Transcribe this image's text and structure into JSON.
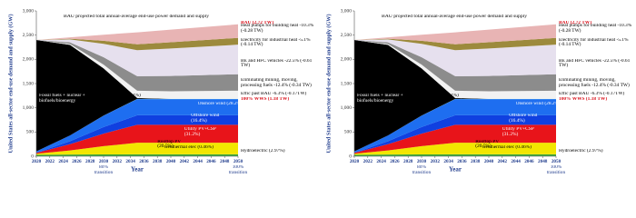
{
  "chart_data": [
    {
      "type": "stacked-area",
      "title": "BAU projected total annual-average end-use power demand and supply",
      "ylabel": "United States all-sector end-use demand and supply (GW)",
      "xlabel": "Year",
      "bau_label": "BAU (2.72 TW)",
      "wws_label": "100% WWS (1.18 TW)",
      "annotations": [
        "80% transition",
        "100% transition"
      ],
      "x": [
        2020,
        2025,
        2030,
        2035,
        2040,
        2050
      ],
      "xlim": [
        2020,
        2050
      ],
      "xticks": [
        2020,
        2022,
        2024,
        2026,
        2028,
        2030,
        2032,
        2034,
        2036,
        2038,
        2040,
        2042,
        2044,
        2046,
        2048,
        2050
      ],
      "ylim": [
        0,
        3000
      ],
      "yticks": [
        0,
        500,
        {
          "value": 1000,
          "label": "1,000"
        },
        {
          "value": 1500,
          "label": "1,500"
        },
        {
          "value": 2000,
          "label": "2,000"
        },
        {
          "value": 2500,
          "label": "2,500"
        },
        {
          "value": 3000,
          "label": "3,000"
        }
      ],
      "series": [
        {
          "name": "Geothermal elec (0.46%)",
          "color": "#1f5f1f",
          "values": [
            0.5,
            2,
            3.5,
            5,
            5,
            5
          ]
        },
        {
          "name": "Hydroelectric (2.97%)",
          "color": "#3aa83a",
          "values": [
            30,
            32,
            34,
            35,
            35,
            35
          ]
        },
        {
          "name": "Rooftop PV (20.5%)",
          "color": "#f2e600",
          "values": [
            20,
            85,
            170,
            240,
            240,
            240
          ]
        },
        {
          "name": "Utility PV+CSP (31.2%)",
          "color": "#e8141a",
          "values": [
            20,
            130,
            260,
            370,
            370,
            370
          ]
        },
        {
          "name": "Offshore wind (16.4%)",
          "color": "#1040e0",
          "values": [
            0,
            60,
            135,
            195,
            195,
            195
          ]
        },
        {
          "name": "Onshore wind (28.2%)",
          "color": "#1e6ef0",
          "values": [
            30,
            120,
            235,
            335,
            335,
            335
          ]
        },
        {
          "name": "Tidal+wave (0.22%)",
          "color": "#30c0e0",
          "values": [
            0,
            1,
            2,
            3,
            3,
            3
          ]
        },
        {
          "name": "Fossil fuels + nuclear + biofuels/bioenergy",
          "color": "#000000",
          "values": [
            2300,
            1870,
            975,
            20,
            0,
            0
          ]
        },
        {
          "name": "Effic past BAU -6.3% (-0.17TW)",
          "color": "#f2f2f2",
          "values": [
            0,
            17,
            77,
            150,
            158,
            170
          ]
        },
        {
          "name": "Eliminating mining, moving, processing fuels -12.4% (-0.34 TW)",
          "color": "#8c8c8c",
          "values": [
            0,
            34,
            153,
            299,
            316,
            340
          ]
        },
        {
          "name": "BE and HFC vehicles -22.5% (-0.61 TW)",
          "color": "#e6e0ee",
          "values": [
            0,
            61,
            275,
            537,
            567,
            610
          ]
        },
        {
          "name": "Electricity for industrial heat -5.1% (-0.14 TW)",
          "color": "#9c8a3c",
          "values": [
            0,
            14,
            63,
            123,
            130,
            140
          ]
        },
        {
          "name": "Heat pumps for building heat -10.3% (-0.28 TW)",
          "color": "#e8b4b4",
          "values": [
            0,
            28,
            126,
            246,
            260,
            280
          ]
        }
      ]
    },
    {
      "type": "stacked-area",
      "title": "BAU projected total annual-average end-use power demand and supply",
      "ylabel": "United States all-sector end-use demand and supply (GW)",
      "xlabel": "Year",
      "bau_label": "BAU (2.72 TW)",
      "wws_label": "100% WWS (1.18 TW)",
      "annotations": [
        "80% transition",
        "100% transition"
      ],
      "x": [
        2020,
        2025,
        2030,
        2035,
        2040,
        2050
      ],
      "xlim": [
        2020,
        2050
      ],
      "xticks": [
        2020,
        2022,
        2024,
        2026,
        2028,
        2030,
        2032,
        2034,
        2036,
        2038,
        2040,
        2042,
        2044,
        2046,
        2048,
        2050
      ],
      "ylim": [
        0,
        3000
      ],
      "yticks": [
        0,
        500,
        {
          "value": 1000,
          "label": "1,000"
        },
        {
          "value": 1500,
          "label": "1,500"
        },
        {
          "value": 2000,
          "label": "2,000"
        },
        {
          "value": 2500,
          "label": "2,500"
        },
        {
          "value": 3000,
          "label": "3,000"
        }
      ],
      "series": [
        {
          "name": "Geothermal elec (0.46%)",
          "color": "#1f5f1f",
          "values": [
            0.5,
            2,
            3.5,
            5,
            5,
            5
          ]
        },
        {
          "name": "Hydroelectric (2.97%)",
          "color": "#3aa83a",
          "values": [
            30,
            32,
            34,
            35,
            35,
            35
          ]
        },
        {
          "name": "Rooftop PV (20.5%)",
          "color": "#f2e600",
          "values": [
            20,
            85,
            170,
            240,
            240,
            240
          ]
        },
        {
          "name": "Utility PV+CSP (31.2%)",
          "color": "#e8141a",
          "values": [
            20,
            130,
            260,
            370,
            370,
            370
          ]
        },
        {
          "name": "Offshore wind (16.4%)",
          "color": "#1040e0",
          "values": [
            0,
            60,
            135,
            195,
            195,
            195
          ]
        },
        {
          "name": "Onshore wind (28.2%)",
          "color": "#1e6ef0",
          "values": [
            30,
            120,
            235,
            335,
            335,
            335
          ]
        },
        {
          "name": "Tidal+wave (0.22%)",
          "color": "#30c0e0",
          "values": [
            0,
            1,
            2,
            3,
            3,
            3
          ]
        },
        {
          "name": "Fossil fuels + nuclear + biofuels/bioenergy",
          "color": "#000000",
          "values": [
            2300,
            1870,
            975,
            20,
            0,
            0
          ]
        },
        {
          "name": "Effic past BAU -6.3% (-0.17TW)",
          "color": "#f2f2f2",
          "values": [
            0,
            17,
            77,
            150,
            158,
            170
          ]
        },
        {
          "name": "Eliminating mining, moving, processing fuels -12.4% (-0.34 TW)",
          "color": "#8c8c8c",
          "values": [
            0,
            34,
            153,
            299,
            316,
            340
          ]
        },
        {
          "name": "BE and HFC vehicles -22.5% (-0.61 TW)",
          "color": "#e6e0ee",
          "values": [
            0,
            61,
            275,
            537,
            567,
            610
          ]
        },
        {
          "name": "Electricity for industrial heat -5.1% (-0.14 TW)",
          "color": "#9c8a3c",
          "values": [
            0,
            14,
            63,
            123,
            130,
            140
          ]
        },
        {
          "name": "Heat pumps for building heat -10.3% (-0.28 TW)",
          "color": "#e8b4b4",
          "values": [
            0,
            28,
            126,
            246,
            260,
            280
          ]
        }
      ]
    }
  ]
}
